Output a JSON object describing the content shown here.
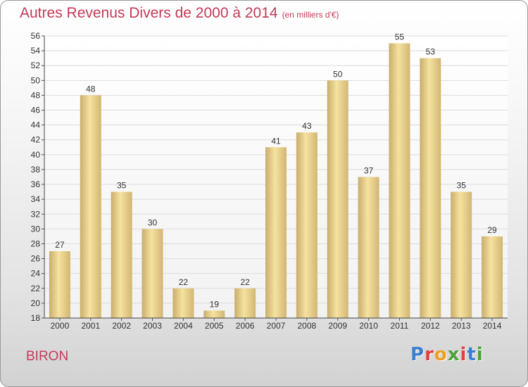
{
  "header": {
    "title": "Autres Revenus Divers de 2000 à 2014",
    "subtitle": "(en milliers d'€)"
  },
  "footer": {
    "place": "BIRON",
    "logo_text": "Proxiti",
    "logo_colors": [
      "#3a7fd0",
      "#e04040",
      "#f0a020",
      "#4aa23a",
      "#e04040",
      "#3a7fd0",
      "#4aa23a"
    ]
  },
  "colors": {
    "title": "#c43a58",
    "bar_light": "#f6e2a0",
    "bar_dark": "#c9ad6c",
    "grid": "#dcdcdc"
  },
  "chart_data": {
    "type": "bar",
    "title": "Autres Revenus Divers de 2000 à 2014",
    "subtitle": "(en milliers d'€)",
    "categories": [
      "2000",
      "2001",
      "2002",
      "2003",
      "2004",
      "2005",
      "2006",
      "2007",
      "2008",
      "2009",
      "2010",
      "2011",
      "2012",
      "2013",
      "2014"
    ],
    "values": [
      27,
      48,
      35,
      30,
      22,
      19,
      22,
      41,
      43,
      50,
      37,
      55,
      53,
      35,
      29
    ],
    "ylim": [
      18,
      56
    ],
    "yticks": [
      18,
      20,
      22,
      24,
      26,
      28,
      30,
      32,
      34,
      36,
      38,
      40,
      42,
      44,
      46,
      48,
      50,
      52,
      54,
      56
    ],
    "grid": true,
    "data_labels": true
  }
}
